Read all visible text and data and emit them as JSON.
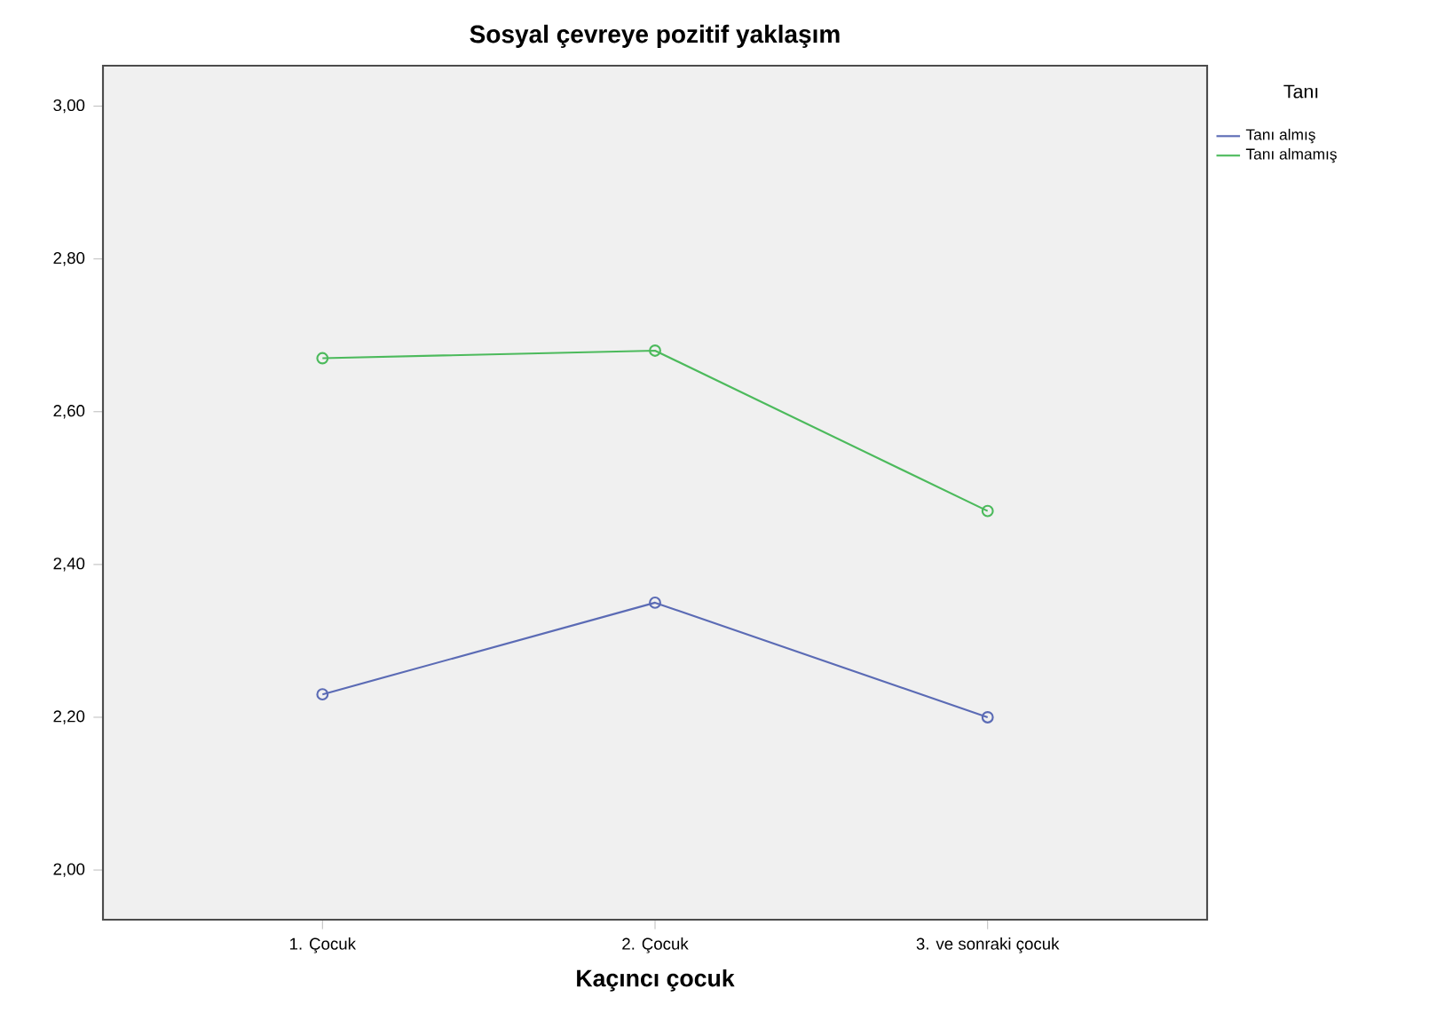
{
  "chart_data": {
    "type": "line",
    "title": "Sosyal çevreye pozitif yaklaşım",
    "xlabel": "Kaçıncı çocuk",
    "legend_title": "Tanı",
    "categories": [
      "1. Çocuk",
      "2. Çocuk",
      "3. ve sonraki çocuk"
    ],
    "series": [
      {
        "name": "Tanı almış",
        "color": "#5b6bb5",
        "values": [
          2.23,
          2.35,
          2.2
        ]
      },
      {
        "name": "Tanı almamış",
        "color": "#4cba5c",
        "values": [
          2.67,
          2.68,
          2.47
        ]
      }
    ],
    "ylim": [
      1.935,
      3.053
    ],
    "yticks": [
      {
        "value": 2.0,
        "label": "2,00"
      },
      {
        "value": 2.2,
        "label": "2,20"
      },
      {
        "value": 2.4,
        "label": "2,40"
      },
      {
        "value": 2.6,
        "label": "2,60"
      },
      {
        "value": 2.8,
        "label": "2,80"
      },
      {
        "value": 3.0,
        "label": "3,00"
      }
    ],
    "grid": false,
    "legend": "top right",
    "marker": "circle",
    "line_style": "solid"
  }
}
